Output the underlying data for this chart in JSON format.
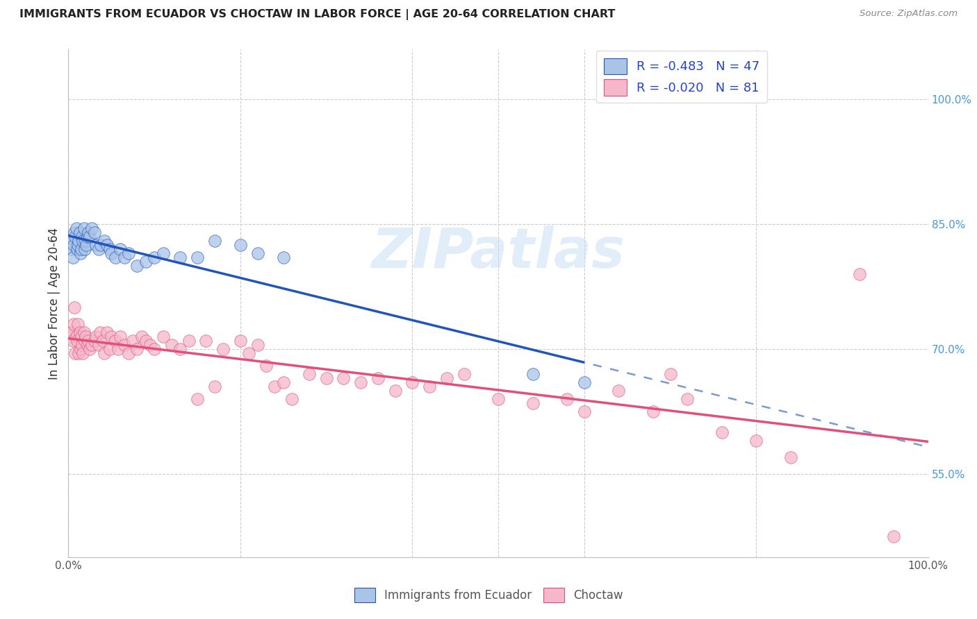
{
  "title": "IMMIGRANTS FROM ECUADOR VS CHOCTAW IN LABOR FORCE | AGE 20-64 CORRELATION CHART",
  "source": "Source: ZipAtlas.com",
  "ylabel": "In Labor Force | Age 20-64",
  "xlim": [
    0.0,
    1.0
  ],
  "ylim": [
    0.45,
    1.06
  ],
  "y_tick_labels_right": [
    "55.0%",
    "70.0%",
    "85.0%",
    "100.0%"
  ],
  "y_tick_vals_right": [
    0.55,
    0.7,
    0.85,
    1.0
  ],
  "legend_R_ecuador": "-0.483",
  "legend_N_ecuador": "47",
  "legend_R_choctaw": "-0.020",
  "legend_N_choctaw": "81",
  "ecuador_color": "#aac4e8",
  "choctaw_color": "#f5b8ca",
  "ecuador_line_color": "#2255bb",
  "choctaw_line_color": "#e0507a",
  "watermark": "ZIPatlas",
  "ecuador_x": [
    0.002,
    0.004,
    0.005,
    0.006,
    0.007,
    0.008,
    0.009,
    0.01,
    0.011,
    0.012,
    0.013,
    0.014,
    0.015,
    0.016,
    0.017,
    0.018,
    0.019,
    0.02,
    0.021,
    0.022,
    0.023,
    0.025,
    0.027,
    0.03,
    0.032,
    0.035,
    0.038,
    0.042,
    0.045,
    0.048,
    0.05,
    0.055,
    0.06,
    0.065,
    0.07,
    0.08,
    0.09,
    0.1,
    0.11,
    0.13,
    0.15,
    0.17,
    0.2,
    0.22,
    0.25,
    0.54,
    0.6
  ],
  "ecuador_y": [
    0.83,
    0.82,
    0.81,
    0.825,
    0.84,
    0.835,
    0.845,
    0.82,
    0.825,
    0.83,
    0.84,
    0.815,
    0.82,
    0.835,
    0.83,
    0.845,
    0.82,
    0.83,
    0.825,
    0.835,
    0.84,
    0.835,
    0.845,
    0.84,
    0.825,
    0.82,
    0.825,
    0.83,
    0.825,
    0.82,
    0.815,
    0.81,
    0.82,
    0.81,
    0.815,
    0.8,
    0.805,
    0.81,
    0.815,
    0.81,
    0.81,
    0.83,
    0.825,
    0.815,
    0.81,
    0.67,
    0.66
  ],
  "choctaw_x": [
    0.002,
    0.003,
    0.004,
    0.005,
    0.006,
    0.007,
    0.008,
    0.009,
    0.01,
    0.011,
    0.012,
    0.013,
    0.014,
    0.015,
    0.016,
    0.017,
    0.018,
    0.019,
    0.02,
    0.022,
    0.023,
    0.025,
    0.027,
    0.03,
    0.032,
    0.035,
    0.037,
    0.04,
    0.042,
    0.045,
    0.048,
    0.05,
    0.055,
    0.058,
    0.06,
    0.065,
    0.07,
    0.075,
    0.08,
    0.085,
    0.09,
    0.095,
    0.1,
    0.11,
    0.12,
    0.13,
    0.14,
    0.15,
    0.16,
    0.17,
    0.18,
    0.2,
    0.21,
    0.22,
    0.23,
    0.24,
    0.25,
    0.26,
    0.28,
    0.3,
    0.32,
    0.34,
    0.36,
    0.38,
    0.4,
    0.42,
    0.44,
    0.46,
    0.5,
    0.54,
    0.58,
    0.6,
    0.64,
    0.68,
    0.7,
    0.72,
    0.76,
    0.8,
    0.84,
    0.92,
    0.96
  ],
  "choctaw_y": [
    0.72,
    0.715,
    0.72,
    0.71,
    0.73,
    0.75,
    0.695,
    0.715,
    0.71,
    0.73,
    0.695,
    0.72,
    0.7,
    0.715,
    0.705,
    0.695,
    0.72,
    0.71,
    0.715,
    0.705,
    0.71,
    0.7,
    0.705,
    0.71,
    0.715,
    0.705,
    0.72,
    0.71,
    0.695,
    0.72,
    0.7,
    0.715,
    0.71,
    0.7,
    0.715,
    0.705,
    0.695,
    0.71,
    0.7,
    0.715,
    0.71,
    0.705,
    0.7,
    0.715,
    0.705,
    0.7,
    0.71,
    0.64,
    0.71,
    0.655,
    0.7,
    0.71,
    0.695,
    0.705,
    0.68,
    0.655,
    0.66,
    0.64,
    0.67,
    0.665,
    0.665,
    0.66,
    0.665,
    0.65,
    0.66,
    0.655,
    0.665,
    0.67,
    0.64,
    0.635,
    0.64,
    0.625,
    0.65,
    0.625,
    0.67,
    0.64,
    0.6,
    0.59,
    0.57,
    0.79,
    0.475
  ]
}
